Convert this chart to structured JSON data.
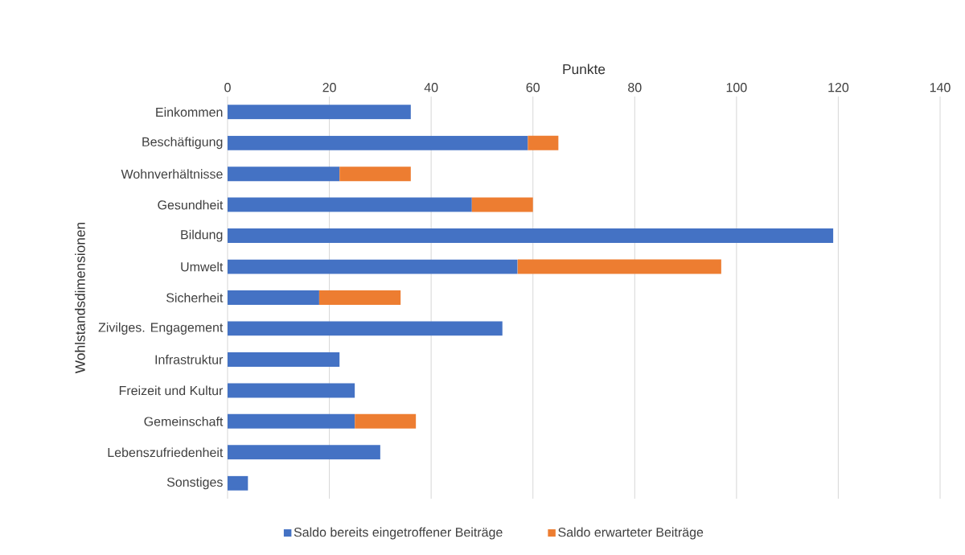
{
  "chart_data": {
    "type": "bar",
    "orientation": "horizontal",
    "stacked": true,
    "xlabel": "Punkte",
    "ylabel": "Wohlstandsdimensionen",
    "categories": [
      "Einkommen",
      "Beschäftigung",
      "Wohnverhältnisse",
      "Gesundheit",
      "Bildung",
      "Umwelt",
      "Sicherheit",
      "Zivilges. Engagement",
      "Infrastruktur",
      "Freizeit und Kultur",
      "Gemeinschaft",
      "Lebenszufriedenheit",
      "Sonstiges"
    ],
    "series": [
      {
        "name": "Saldo bereits eingetroffener Beiträge",
        "color": "#4472c4",
        "values": [
          36,
          59,
          22,
          48,
          119,
          57,
          18,
          54,
          22,
          25,
          25,
          30,
          4
        ]
      },
      {
        "name": "Saldo erwarteter Beiträge",
        "color": "#ed7d31",
        "values": [
          null,
          6,
          14,
          12,
          null,
          40,
          16,
          null,
          null,
          null,
          12,
          null,
          null
        ]
      }
    ],
    "xlim": [
      0,
      140
    ],
    "xticks": [
      0,
      20,
      40,
      60,
      80,
      100,
      120,
      140
    ],
    "grid": "x",
    "legend": "bottom"
  }
}
